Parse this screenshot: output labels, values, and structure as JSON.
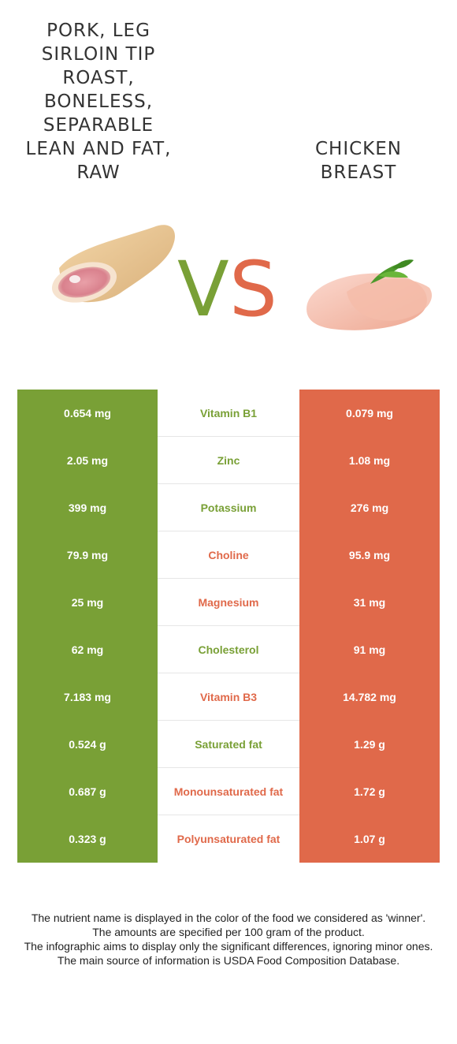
{
  "left_food": {
    "name": "Pork, leg sirloin tip roast, boneless, separable lean and fat, raw",
    "color": "#79a036",
    "image_icon": "pork-leg-image"
  },
  "right_food": {
    "name": "Chicken breast",
    "color": "#e0694a",
    "image_icon": "chicken-breast-image"
  },
  "vs": {
    "v": "V",
    "s": "S"
  },
  "rows": [
    {
      "nutrient": "Vitamin B1",
      "left": "0.654 mg",
      "right": "0.079 mg",
      "winner": "left"
    },
    {
      "nutrient": "Zinc",
      "left": "2.05 mg",
      "right": "1.08 mg",
      "winner": "left"
    },
    {
      "nutrient": "Potassium",
      "left": "399 mg",
      "right": "276 mg",
      "winner": "left"
    },
    {
      "nutrient": "Choline",
      "left": "79.9 mg",
      "right": "95.9 mg",
      "winner": "right"
    },
    {
      "nutrient": "Magnesium",
      "left": "25 mg",
      "right": "31 mg",
      "winner": "right"
    },
    {
      "nutrient": "Cholesterol",
      "left": "62 mg",
      "right": "91 mg",
      "winner": "left"
    },
    {
      "nutrient": "Vitamin B3",
      "left": "7.183 mg",
      "right": "14.782 mg",
      "winner": "right"
    },
    {
      "nutrient": "Saturated fat",
      "left": "0.524 g",
      "right": "1.29 g",
      "winner": "left"
    },
    {
      "nutrient": "Monounsaturated fat",
      "left": "0.687 g",
      "right": "1.72 g",
      "winner": "right"
    },
    {
      "nutrient": "Polyunsaturated fat",
      "left": "0.323 g",
      "right": "1.07 g",
      "winner": "right"
    }
  ],
  "footer": [
    "The nutrient name is displayed in the color of the food we considered as 'winner'.",
    "The amounts are specified per 100 gram of the product.",
    "The infographic aims to display only the significant differences, ignoring minor ones.",
    "The main source of information is USDA Food Composition Database."
  ]
}
